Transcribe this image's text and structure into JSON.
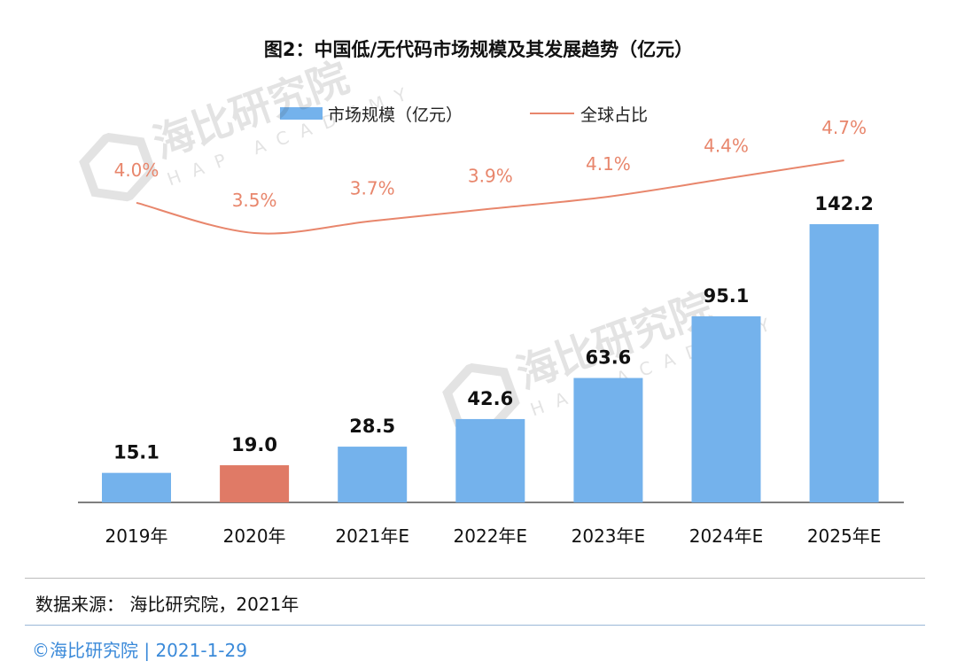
{
  "chart_data": {
    "type": "bar",
    "title": "图2：中国低/无代码市场规模及其发展趋势（亿元）",
    "categories": [
      "2019年",
      "2020年",
      "2021年E",
      "2022年E",
      "2023年E",
      "2024年E",
      "2025年E"
    ],
    "series": [
      {
        "name": "市场规模（亿元）",
        "type": "bar",
        "values": [
          15.1,
          19.0,
          28.5,
          42.6,
          63.6,
          95.1,
          142.2
        ],
        "value_labels": [
          "15.1",
          "19.0",
          "28.5",
          "42.6",
          "63.6",
          "95.1",
          "142.2"
        ]
      },
      {
        "name": "全球占比",
        "type": "line",
        "values": [
          4.0,
          3.5,
          3.7,
          3.9,
          4.1,
          4.4,
          4.7
        ],
        "value_labels": [
          "4.0%",
          "3.5%",
          "3.7%",
          "3.9%",
          "4.1%",
          "4.4%",
          "4.7%"
        ]
      }
    ],
    "highlight_index": 1,
    "legend_position": "top",
    "grid": false,
    "colors": {
      "bar": "#74b2ec",
      "bar_highlight": "#e07a66",
      "line": "#e8866c",
      "line_label": "#e8866c",
      "value_label": "#111111",
      "axis": "#555555"
    }
  },
  "legend": {
    "bar_label": "市场规模（亿元）",
    "line_label": "全球占比"
  },
  "source_text": "数据来源： 海比研究院，2021年",
  "footer_text": "©海比研究院  |  2021-1-29",
  "watermark": {
    "brand": "海比研究院",
    "sub": "HAP ACADEMY"
  }
}
